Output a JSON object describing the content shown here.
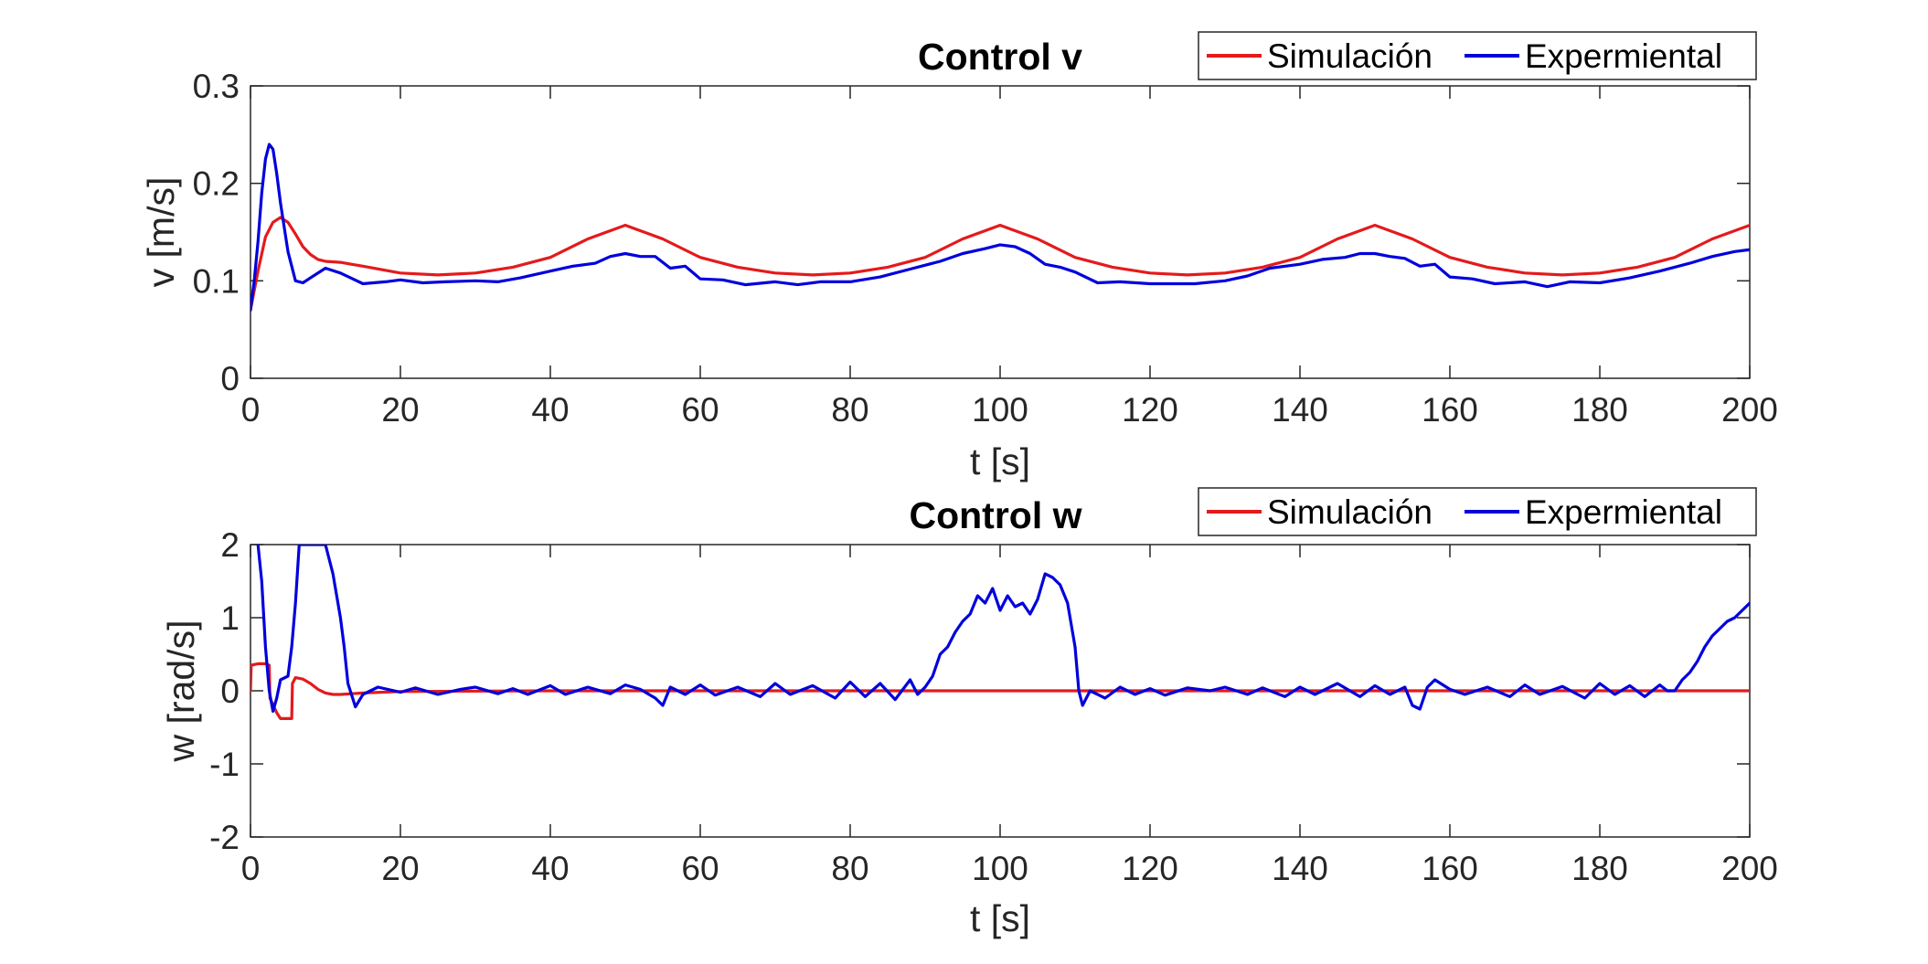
{
  "chart_data": [
    {
      "type": "line",
      "title": "Control v",
      "xlabel": "t [s]",
      "ylabel": "v [m/s]",
      "xlim": [
        0,
        200
      ],
      "ylim": [
        0,
        0.3
      ],
      "xticks": [
        0,
        20,
        40,
        60,
        80,
        100,
        120,
        140,
        160,
        180,
        200
      ],
      "yticks": [
        0,
        0.1,
        0.2,
        0.3
      ],
      "xtick_labels": [
        "0",
        "20",
        "40",
        "60",
        "80",
        "100",
        "120",
        "140",
        "160",
        "180",
        "200"
      ],
      "ytick_labels": [
        "0",
        "0.1",
        "0.2",
        "0.3"
      ],
      "grid": false,
      "legend": "top-right, horizontal",
      "series": [
        {
          "name": "Simulación",
          "color": "#e41a1c",
          "x": [
            0,
            1,
            2,
            3,
            4,
            5,
            6,
            7,
            8,
            9,
            10,
            12,
            15,
            20,
            25,
            30,
            35,
            40,
            45,
            50,
            55,
            60,
            65,
            70,
            75,
            80,
            85,
            90,
            95,
            100,
            105,
            110,
            115,
            120,
            125,
            130,
            135,
            140,
            145,
            150,
            155,
            160,
            165,
            170,
            175,
            180,
            185,
            190,
            195,
            200
          ],
          "y": [
            0.07,
            0.11,
            0.145,
            0.16,
            0.165,
            0.16,
            0.148,
            0.135,
            0.127,
            0.122,
            0.12,
            0.119,
            0.115,
            0.108,
            0.106,
            0.108,
            0.114,
            0.124,
            0.143,
            0.157,
            0.143,
            0.124,
            0.114,
            0.108,
            0.106,
            0.108,
            0.114,
            0.124,
            0.143,
            0.157,
            0.143,
            0.124,
            0.114,
            0.108,
            0.106,
            0.108,
            0.114,
            0.124,
            0.143,
            0.157,
            0.143,
            0.124,
            0.114,
            0.108,
            0.106,
            0.108,
            0.114,
            0.124,
            0.143,
            0.157
          ]
        },
        {
          "name": "Expermiental",
          "color": "#0000dd",
          "x": [
            0,
            0.5,
            1,
            1.5,
            2,
            2.5,
            3,
            3.5,
            4,
            5,
            6,
            7,
            8,
            10,
            12,
            15,
            18,
            20,
            23,
            26,
            30,
            33,
            36,
            40,
            43,
            46,
            48,
            50,
            52,
            54,
            56,
            58,
            60,
            63,
            66,
            70,
            73,
            76,
            80,
            84,
            88,
            92,
            95,
            98,
            100,
            102,
            104,
            106,
            108,
            110,
            113,
            116,
            120,
            123,
            126,
            130,
            133,
            136,
            140,
            143,
            146,
            148,
            150,
            152,
            154,
            156,
            158,
            160,
            163,
            166,
            170,
            173,
            176,
            180,
            184,
            188,
            192,
            195,
            198,
            200
          ],
          "y": [
            0.07,
            0.1,
            0.14,
            0.19,
            0.225,
            0.24,
            0.235,
            0.21,
            0.18,
            0.13,
            0.1,
            0.098,
            0.103,
            0.113,
            0.108,
            0.097,
            0.099,
            0.101,
            0.098,
            0.099,
            0.1,
            0.099,
            0.103,
            0.11,
            0.115,
            0.118,
            0.125,
            0.128,
            0.125,
            0.125,
            0.113,
            0.115,
            0.102,
            0.101,
            0.096,
            0.099,
            0.096,
            0.099,
            0.099,
            0.104,
            0.112,
            0.12,
            0.128,
            0.133,
            0.137,
            0.135,
            0.128,
            0.117,
            0.114,
            0.109,
            0.098,
            0.099,
            0.097,
            0.097,
            0.097,
            0.1,
            0.105,
            0.113,
            0.117,
            0.122,
            0.124,
            0.128,
            0.128,
            0.125,
            0.123,
            0.115,
            0.117,
            0.104,
            0.102,
            0.097,
            0.099,
            0.094,
            0.099,
            0.098,
            0.103,
            0.11,
            0.118,
            0.125,
            0.13,
            0.132
          ]
        }
      ]
    },
    {
      "type": "line",
      "title": "Control w",
      "xlabel": "t [s]",
      "ylabel": "w [rad/s]",
      "xlim": [
        0,
        200
      ],
      "ylim": [
        -2,
        2
      ],
      "xticks": [
        0,
        20,
        40,
        60,
        80,
        100,
        120,
        140,
        160,
        180,
        200
      ],
      "yticks": [
        -2,
        -1,
        0,
        1,
        2
      ],
      "xtick_labels": [
        "0",
        "20",
        "40",
        "60",
        "80",
        "100",
        "120",
        "140",
        "160",
        "180",
        "200"
      ],
      "ytick_labels": [
        "-2",
        "-1",
        "0",
        "1",
        "2"
      ],
      "grid": false,
      "legend": "top-right, horizontal",
      "series": [
        {
          "name": "Simulación",
          "color": "#e41a1c",
          "x": [
            0,
            0.1,
            1,
            2,
            2.5,
            2.6,
            3.5,
            4,
            5,
            5.5,
            5.6,
            6,
            7,
            8,
            9,
            10,
            11,
            12,
            15,
            20,
            40,
            60,
            80,
            90,
            100,
            110,
            120,
            140,
            160,
            180,
            190,
            200
          ],
          "y": [
            0,
            0.35,
            0.37,
            0.37,
            0.35,
            -0.1,
            -0.3,
            -0.38,
            -0.38,
            -0.38,
            0.1,
            0.18,
            0.16,
            0.1,
            0.02,
            -0.03,
            -0.05,
            -0.05,
            -0.03,
            -0.01,
            0.0,
            0.0,
            0.0,
            0.0,
            0.0,
            0.0,
            0.0,
            0.0,
            0.0,
            0.0,
            0.0,
            0.0
          ]
        },
        {
          "name": "Expermiental",
          "color": "#0000dd",
          "x": [
            1,
            1.5,
            2,
            2.5,
            3,
            3.5,
            4,
            5,
            5.5,
            6,
            6.5,
            8,
            9,
            10,
            11,
            12,
            12.5,
            13,
            14,
            15,
            17,
            20,
            22,
            25,
            28,
            30,
            33,
            35,
            37,
            40,
            42,
            45,
            48,
            50,
            52,
            54,
            55,
            56,
            58,
            60,
            62,
            65,
            68,
            70,
            72,
            75,
            78,
            80,
            82,
            84,
            86,
            88,
            89,
            90,
            91,
            92,
            93,
            94,
            95,
            96,
            97,
            98,
            99,
            100,
            101,
            102,
            103,
            104,
            105,
            106,
            107,
            108,
            109,
            110,
            110.5,
            111,
            112,
            114,
            116,
            118,
            120,
            122,
            125,
            128,
            130,
            133,
            135,
            138,
            140,
            142,
            145,
            148,
            150,
            152,
            154,
            155,
            156,
            157,
            158,
            160,
            162,
            165,
            168,
            170,
            172,
            175,
            178,
            180,
            182,
            184,
            186,
            188,
            189,
            190,
            191,
            192,
            193,
            194,
            195,
            196,
            197,
            198,
            199,
            200
          ],
          "y": [
            2.0,
            1.5,
            0.6,
            0.0,
            -0.28,
            -0.1,
            0.15,
            0.2,
            0.6,
            1.2,
            2.0,
            2.0,
            2.0,
            2.0,
            1.6,
            1.0,
            0.6,
            0.1,
            -0.22,
            -0.05,
            0.05,
            -0.02,
            0.04,
            -0.05,
            0.02,
            0.05,
            -0.04,
            0.03,
            -0.05,
            0.07,
            -0.05,
            0.05,
            -0.04,
            0.08,
            0.02,
            -0.1,
            -0.2,
            0.05,
            -0.05,
            0.08,
            -0.06,
            0.05,
            -0.08,
            0.1,
            -0.05,
            0.07,
            -0.1,
            0.12,
            -0.08,
            0.1,
            -0.12,
            0.15,
            -0.05,
            0.05,
            0.2,
            0.5,
            0.6,
            0.8,
            0.95,
            1.05,
            1.3,
            1.2,
            1.4,
            1.1,
            1.3,
            1.15,
            1.2,
            1.05,
            1.25,
            1.6,
            1.55,
            1.45,
            1.2,
            0.6,
            0.0,
            -0.2,
            0.0,
            -0.1,
            0.05,
            -0.05,
            0.03,
            -0.06,
            0.04,
            0.0,
            0.05,
            -0.05,
            0.04,
            -0.08,
            0.05,
            -0.05,
            0.1,
            -0.08,
            0.07,
            -0.05,
            0.05,
            -0.2,
            -0.25,
            0.05,
            0.15,
            0.02,
            -0.05,
            0.05,
            -0.08,
            0.08,
            -0.05,
            0.06,
            -0.1,
            0.1,
            -0.05,
            0.07,
            -0.08,
            0.08,
            0.0,
            0.0,
            0.15,
            0.25,
            0.4,
            0.6,
            0.75,
            0.85,
            0.95,
            1.0,
            1.1,
            1.2
          ]
        }
      ]
    }
  ]
}
